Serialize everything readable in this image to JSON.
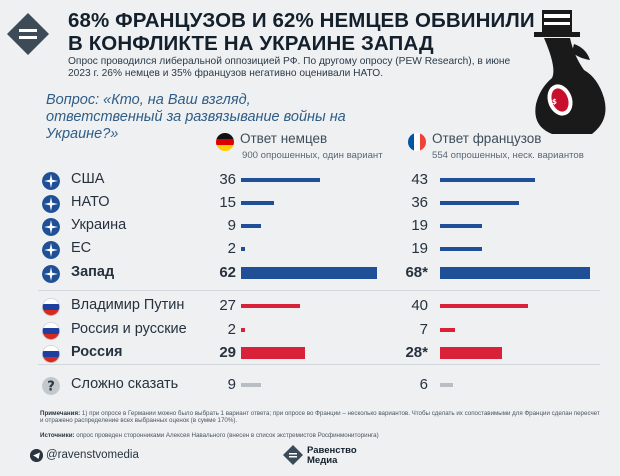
{
  "title": "68% ФРАНЦУЗОВ И 62% НЕМЦЕВ ОБВИНИЛИ В КОНФЛИКТЕ НА УКРАИНЕ ЗАПАД",
  "subtitle": "Опрос проводился либеральной оппозицией РФ. По другому опросу (PEW Research), в июне 2023 г. 26% немцев и 35% французов негативно оценивали НАТО.",
  "question": "Вопрос: «Кто, на Ваш взгляд, ответственный за развязывание войны на Украине?»",
  "columns": {
    "germany": {
      "title": "Ответ немцев",
      "sub": "900 опрошенных, один вариант"
    },
    "france": {
      "title": "Ответ французов",
      "sub": "554 опрошенных, неск. вариантов"
    }
  },
  "rows": [
    {
      "label": "США",
      "de": "36",
      "fr": "43"
    },
    {
      "label": "НАТО",
      "de": "15",
      "fr": "36"
    },
    {
      "label": "Украина",
      "de": "9",
      "fr": "19"
    },
    {
      "label": "ЕС",
      "de": "2",
      "fr": "19"
    },
    {
      "label": "Запад",
      "de": "62",
      "fr": "68*"
    },
    {
      "label": "Владимир Путин",
      "de": "27",
      "fr": "40"
    },
    {
      "label": "Россия и русские",
      "de": "2",
      "fr": "7"
    },
    {
      "label": "Россия",
      "de": "29",
      "fr": "28*"
    },
    {
      "label": "Сложно сказать",
      "de": "9",
      "fr": "6"
    }
  ],
  "chart_data": {
    "type": "bar",
    "categories": [
      "США",
      "НАТО",
      "Украина",
      "ЕС",
      "Запад",
      "Владимир Путин",
      "Россия и русские",
      "Россия",
      "Сложно сказать"
    ],
    "series": [
      {
        "name": "Ответ немцев",
        "values": [
          36,
          15,
          9,
          2,
          62,
          27,
          2,
          29,
          9
        ]
      },
      {
        "name": "Ответ французов",
        "values": [
          43,
          36,
          19,
          19,
          68,
          40,
          7,
          28,
          6
        ]
      }
    ],
    "groups": [
      "west",
      "west",
      "west",
      "west",
      "west",
      "russia",
      "russia",
      "russia",
      "unknown"
    ],
    "colors": {
      "west": "#1f4f96",
      "russia": "#d9213a",
      "unknown": "#b8bec4"
    },
    "xlim": [
      0,
      100
    ]
  },
  "notes": {
    "remark_label": "Примечания:",
    "remark_text": "1) при опросе в Германии можно было выбрать 1 вариант ответа; при опросе во Франции – несколько вариантов. Чтобы сделать их сопоставимыми для Франции сделан пересчет и отражено распределение всех выбранных оценок (в сумме 170%).",
    "source_label": "Источники:",
    "source_text": "опрос проведен сторонниками Алексея Навального (внесен в список экстремистов Росфинмониторинга)"
  },
  "footer": {
    "handle": "@ravenstvomedia",
    "brand_line1": "Равенство",
    "brand_line2": "Медиа"
  }
}
